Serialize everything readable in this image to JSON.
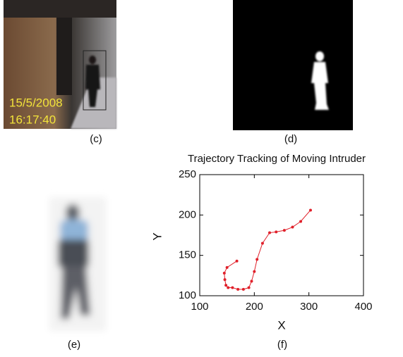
{
  "panels": {
    "c": {
      "label": "(c)",
      "date": "15/5/2008",
      "time": "16:17:40"
    },
    "d": {
      "label": "(d)"
    },
    "e": {
      "label": "(e)"
    },
    "f": {
      "label": "(f)"
    }
  },
  "chart_data": {
    "type": "line",
    "title": "Trajectory Tracking of Moving Intruder",
    "x_label": "X",
    "y_label": "Y",
    "x": [
      168,
      150,
      145,
      146,
      148,
      152,
      160,
      170,
      180,
      190,
      195,
      200,
      205,
      215,
      228,
      240,
      255,
      270,
      285,
      303
    ],
    "series": [
      {
        "color": "#e0202a",
        "values": [
          143,
          135,
          128,
          120,
          113,
          110,
          110,
          108,
          108,
          110,
          118,
          130,
          145,
          165,
          178,
          179,
          181,
          185,
          192,
          206
        ]
      }
    ],
    "xlim": [
      100,
      400
    ],
    "ylim": [
      100,
      250
    ],
    "xticks": [
      100,
      200,
      300,
      400
    ],
    "yticks": [
      100,
      150,
      200,
      250
    ],
    "grid": false,
    "markers": true
  }
}
